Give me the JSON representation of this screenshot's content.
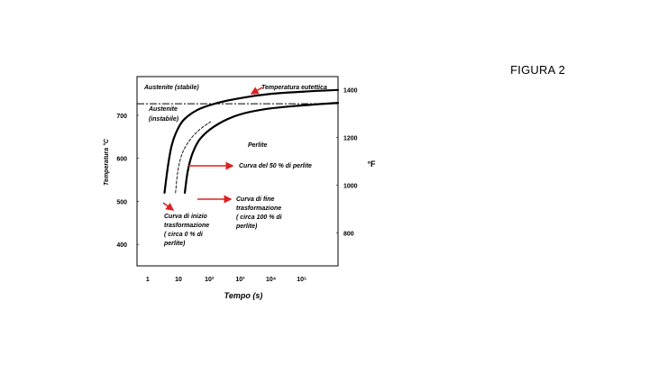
{
  "slide": {
    "figure_label": "FIGURA 2"
  },
  "chart_data": {
    "type": "line",
    "title": "",
    "xlabel": "Tempo (s)",
    "ylabel": "Temperatura °C",
    "ylabel_right": "°F",
    "x_scale": "log",
    "x_ticks": [
      {
        "label": "1",
        "value": 1
      },
      {
        "label": "10",
        "value": 10
      },
      {
        "label": "10²",
        "value": 100
      },
      {
        "label": "10³",
        "value": 1000
      },
      {
        "label": "10⁴",
        "value": 10000
      },
      {
        "label": "10⁵",
        "value": 100000
      }
    ],
    "y_ticks_left": [
      {
        "label": "400",
        "value": 400
      },
      {
        "label": "500",
        "value": 500
      },
      {
        "label": "600",
        "value": 600
      },
      {
        "label": "700",
        "value": 700
      }
    ],
    "y_ticks_right": [
      {
        "label": "800",
        "value_c": 427
      },
      {
        "label": "1000",
        "value_c": 538
      },
      {
        "label": "1200",
        "value_c": 649
      },
      {
        "label": "1400",
        "value_c": 760
      }
    ],
    "ylim": [
      350,
      790
    ],
    "xlim": [
      0.45,
      1500000
    ],
    "eutectic_temperature_c": 727,
    "series": [
      {
        "style": "solid-bold",
        "points": [
          [
            3.5,
            520
          ],
          [
            4.5,
            580
          ],
          [
            6,
            630
          ],
          [
            9,
            665
          ],
          [
            15,
            690
          ],
          [
            40,
            712
          ],
          [
            150,
            727
          ],
          [
            1000,
            740
          ],
          [
            10000,
            750
          ],
          [
            200000,
            756
          ],
          [
            1500000,
            759
          ]
        ]
      },
      {
        "style": "dashed",
        "points": [
          [
            8,
            520
          ],
          [
            9.5,
            570
          ],
          [
            13,
            610
          ],
          [
            22,
            640
          ],
          [
            45,
            665
          ],
          [
            110,
            685
          ]
        ]
      },
      {
        "style": "solid-bold",
        "points": [
          [
            16,
            520
          ],
          [
            20,
            570
          ],
          [
            28,
            610
          ],
          [
            50,
            645
          ],
          [
            150,
            675
          ],
          [
            800,
            700
          ],
          [
            6000,
            714
          ],
          [
            100000,
            723
          ],
          [
            1500000,
            729
          ]
        ]
      }
    ],
    "annotations": {
      "austenite_stable": "Austenite (stabile)",
      "eutectic": "Temperatura eutettica",
      "austenite_unstable_1": "Austenite",
      "austenite_unstable_2": "(instabile)",
      "perlite": "Perlite",
      "curve_50": "Curva del 50 % di perlite",
      "end_curve_1": "Curva di fine",
      "end_curve_2": "trasformazione",
      "end_curve_3": "( circa 100 % di",
      "end_curve_4": "perlite)",
      "start_curve_1": "Curva di inizio",
      "start_curve_2": "trasformazione",
      "start_curve_3": "( circa 0 % di",
      "start_curve_4": "perlite)"
    },
    "colors": {
      "axis": "#000000",
      "curve": "#000000",
      "arrow": "#e02020"
    }
  }
}
